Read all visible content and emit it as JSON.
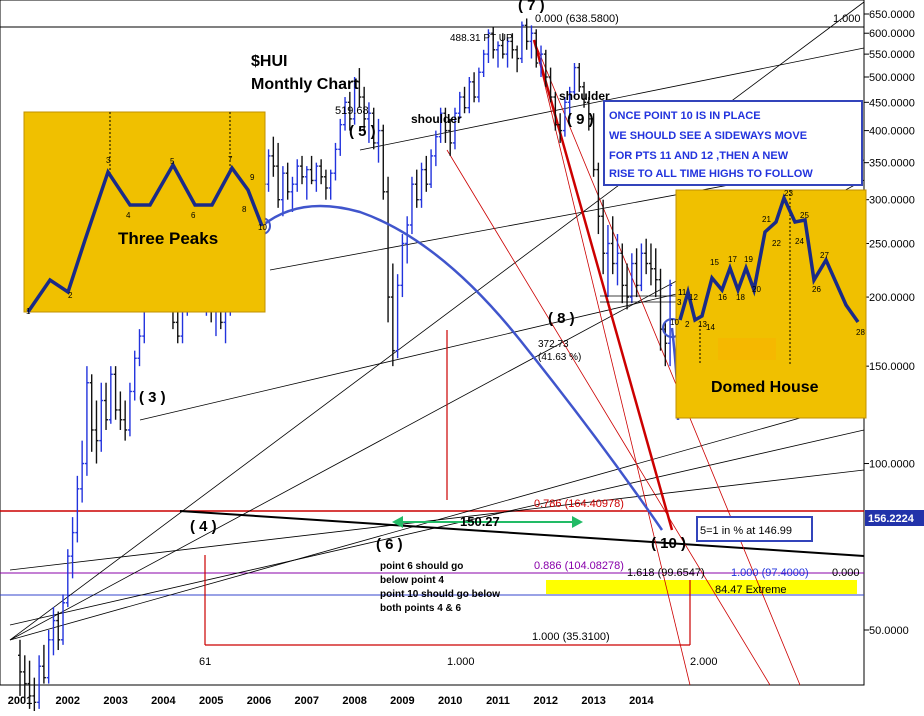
{
  "chart_data": {
    "type": "bar",
    "subtype": "ohlc-monthly",
    "title": "$HUI",
    "subtitle": "Monthly Chart",
    "symbol": "$HUI",
    "colors": {
      "bars_up": "#2233dd",
      "bars_down": "#111111",
      "fib_red": "#cc0000",
      "curve_blue": "#4055cc",
      "callout_bg": "#f0c000",
      "current_price_bg": "#2233aa",
      "fib_purple": "#8800aa",
      "arrow_green": "#22bb66",
      "extreme_band": "#ffff00"
    },
    "current_price": "156.2224",
    "y_axis": {
      "ticks": [
        "650.0000",
        "600.0000",
        "550.0000",
        "500.0000",
        "450.0000",
        "400.0000",
        "350.0000",
        "300.0000",
        "250.0000",
        "200.0000",
        "150.0000",
        "100.0000",
        "50.0000"
      ],
      "scale": "log"
    },
    "x_axis": {
      "ticks": [
        "2001",
        "2002",
        "2003",
        "2004",
        "2005",
        "2006",
        "2007",
        "2008",
        "2009",
        "2010",
        "2011",
        "2012",
        "2013",
        "2014"
      ]
    },
    "points": [
      {
        "label": "( 3 )",
        "date": "2003.6",
        "value": 260
      },
      {
        "label": "( 4 )",
        "date": "2004.6",
        "value": 160
      },
      {
        "label": "( 5 )",
        "date": "2008.2",
        "value": 519.68
      },
      {
        "label": "( 6 )",
        "date": "2008.8",
        "value": 150
      },
      {
        "label": "( 7 )",
        "date": "2011.7",
        "value": 638.58
      },
      {
        "label": "( 8 )",
        "date": "2012.5",
        "value": 380
      },
      {
        "label": "( 9 )",
        "date": "2012.8",
        "value": 530
      },
      {
        "label": "( 10 )",
        "date": "2014.3",
        "value": 150
      }
    ],
    "ohlc": [
      {
        "t": 2001.0,
        "o": 45,
        "h": 48,
        "l": 38,
        "c": 42
      },
      {
        "t": 2001.1,
        "o": 42,
        "h": 45,
        "l": 37,
        "c": 40
      },
      {
        "t": 2001.2,
        "o": 40,
        "h": 44,
        "l": 36,
        "c": 38
      },
      {
        "t": 2001.3,
        "o": 38,
        "h": 41,
        "l": 35,
        "c": 37
      },
      {
        "t": 2001.4,
        "o": 37,
        "h": 45,
        "l": 36,
        "c": 43
      },
      {
        "t": 2001.5,
        "o": 43,
        "h": 47,
        "l": 40,
        "c": 41
      },
      {
        "t": 2001.6,
        "o": 41,
        "h": 50,
        "l": 40,
        "c": 48
      },
      {
        "t": 2001.7,
        "o": 48,
        "h": 55,
        "l": 45,
        "c": 52
      },
      {
        "t": 2001.8,
        "o": 52,
        "h": 54,
        "l": 46,
        "c": 48
      },
      {
        "t": 2001.9,
        "o": 48,
        "h": 58,
        "l": 47,
        "c": 56
      },
      {
        "t": 2002.0,
        "o": 56,
        "h": 70,
        "l": 55,
        "c": 68
      },
      {
        "t": 2002.1,
        "o": 68,
        "h": 80,
        "l": 62,
        "c": 75
      },
      {
        "t": 2002.2,
        "o": 75,
        "h": 95,
        "l": 72,
        "c": 90
      },
      {
        "t": 2002.3,
        "o": 90,
        "h": 110,
        "l": 85,
        "c": 100
      },
      {
        "t": 2002.4,
        "o": 100,
        "h": 150,
        "l": 95,
        "c": 140
      },
      {
        "t": 2002.5,
        "o": 140,
        "h": 145,
        "l": 105,
        "c": 115
      },
      {
        "t": 2002.6,
        "o": 115,
        "h": 130,
        "l": 100,
        "c": 110
      },
      {
        "t": 2002.7,
        "o": 110,
        "h": 140,
        "l": 105,
        "c": 130
      },
      {
        "t": 2002.8,
        "o": 130,
        "h": 140,
        "l": 115,
        "c": 120
      },
      {
        "t": 2002.9,
        "o": 120,
        "h": 150,
        "l": 118,
        "c": 145
      },
      {
        "t": 2003.0,
        "o": 145,
        "h": 150,
        "l": 120,
        "c": 125
      },
      {
        "t": 2003.1,
        "o": 125,
        "h": 135,
        "l": 115,
        "c": 120
      },
      {
        "t": 2003.2,
        "o": 120,
        "h": 130,
        "l": 110,
        "c": 115
      },
      {
        "t": 2003.3,
        "o": 115,
        "h": 140,
        "l": 112,
        "c": 135
      },
      {
        "t": 2003.4,
        "o": 135,
        "h": 160,
        "l": 130,
        "c": 155
      },
      {
        "t": 2003.5,
        "o": 155,
        "h": 175,
        "l": 150,
        "c": 170
      },
      {
        "t": 2003.6,
        "o": 170,
        "h": 200,
        "l": 165,
        "c": 195
      },
      {
        "t": 2003.7,
        "o": 195,
        "h": 230,
        "l": 190,
        "c": 220
      },
      {
        "t": 2003.8,
        "o": 220,
        "h": 250,
        "l": 210,
        "c": 245
      },
      {
        "t": 2003.9,
        "o": 245,
        "h": 262,
        "l": 230,
        "c": 255
      },
      {
        "t": 2004.0,
        "o": 255,
        "h": 258,
        "l": 200,
        "c": 210
      },
      {
        "t": 2004.1,
        "o": 210,
        "h": 230,
        "l": 190,
        "c": 220
      },
      {
        "t": 2004.2,
        "o": 220,
        "h": 225,
        "l": 175,
        "c": 180
      },
      {
        "t": 2004.3,
        "o": 180,
        "h": 195,
        "l": 165,
        "c": 170
      },
      {
        "t": 2004.4,
        "o": 170,
        "h": 200,
        "l": 165,
        "c": 195
      },
      {
        "t": 2004.5,
        "o": 195,
        "h": 220,
        "l": 185,
        "c": 215
      },
      {
        "t": 2004.6,
        "o": 215,
        "h": 245,
        "l": 205,
        "c": 240
      },
      {
        "t": 2004.7,
        "o": 240,
        "h": 250,
        "l": 215,
        "c": 220
      },
      {
        "t": 2004.8,
        "o": 220,
        "h": 235,
        "l": 195,
        "c": 200
      },
      {
        "t": 2004.9,
        "o": 200,
        "h": 215,
        "l": 185,
        "c": 210
      },
      {
        "t": 2005.0,
        "o": 210,
        "h": 215,
        "l": 180,
        "c": 190
      },
      {
        "t": 2005.1,
        "o": 190,
        "h": 205,
        "l": 170,
        "c": 200
      },
      {
        "t": 2005.2,
        "o": 200,
        "h": 210,
        "l": 175,
        "c": 180
      },
      {
        "t": 2005.3,
        "o": 180,
        "h": 195,
        "l": 165,
        "c": 190
      },
      {
        "t": 2005.4,
        "o": 190,
        "h": 215,
        "l": 185,
        "c": 210
      },
      {
        "t": 2005.5,
        "o": 210,
        "h": 230,
        "l": 200,
        "c": 225
      },
      {
        "t": 2005.6,
        "o": 225,
        "h": 245,
        "l": 215,
        "c": 240
      },
      {
        "t": 2005.7,
        "o": 240,
        "h": 265,
        "l": 235,
        "c": 260
      },
      {
        "t": 2005.8,
        "o": 260,
        "h": 280,
        "l": 250,
        "c": 275
      },
      {
        "t": 2005.9,
        "o": 275,
        "h": 300,
        "l": 265,
        "c": 295
      },
      {
        "t": 2006.0,
        "o": 295,
        "h": 340,
        "l": 285,
        "c": 330
      },
      {
        "t": 2006.1,
        "o": 330,
        "h": 350,
        "l": 300,
        "c": 320
      },
      {
        "t": 2006.2,
        "o": 320,
        "h": 370,
        "l": 310,
        "c": 360
      },
      {
        "t": 2006.3,
        "o": 360,
        "h": 390,
        "l": 330,
        "c": 345
      },
      {
        "t": 2006.4,
        "o": 345,
        "h": 380,
        "l": 290,
        "c": 300
      },
      {
        "t": 2006.5,
        "o": 300,
        "h": 345,
        "l": 280,
        "c": 335
      },
      {
        "t": 2006.6,
        "o": 335,
        "h": 350,
        "l": 300,
        "c": 310
      },
      {
        "t": 2006.7,
        "o": 310,
        "h": 330,
        "l": 285,
        "c": 320
      },
      {
        "t": 2006.8,
        "o": 320,
        "h": 355,
        "l": 310,
        "c": 345
      },
      {
        "t": 2006.9,
        "o": 345,
        "h": 360,
        "l": 320,
        "c": 330
      },
      {
        "t": 2007.0,
        "o": 330,
        "h": 345,
        "l": 300,
        "c": 340
      },
      {
        "t": 2007.1,
        "o": 340,
        "h": 360,
        "l": 320,
        "c": 325
      },
      {
        "t": 2007.2,
        "o": 325,
        "h": 350,
        "l": 310,
        "c": 345
      },
      {
        "t": 2007.3,
        "o": 345,
        "h": 355,
        "l": 320,
        "c": 330
      },
      {
        "t": 2007.4,
        "o": 330,
        "h": 340,
        "l": 300,
        "c": 315
      },
      {
        "t": 2007.5,
        "o": 315,
        "h": 340,
        "l": 300,
        "c": 335
      },
      {
        "t": 2007.6,
        "o": 335,
        "h": 380,
        "l": 325,
        "c": 370
      },
      {
        "t": 2007.7,
        "o": 370,
        "h": 420,
        "l": 360,
        "c": 410
      },
      {
        "t": 2007.8,
        "o": 410,
        "h": 460,
        "l": 400,
        "c": 450
      },
      {
        "t": 2007.9,
        "o": 450,
        "h": 470,
        "l": 400,
        "c": 420
      },
      {
        "t": 2008.0,
        "o": 420,
        "h": 500,
        "l": 410,
        "c": 490
      },
      {
        "t": 2008.1,
        "o": 490,
        "h": 519,
        "l": 440,
        "c": 460
      },
      {
        "t": 2008.2,
        "o": 460,
        "h": 480,
        "l": 400,
        "c": 420
      },
      {
        "t": 2008.3,
        "o": 420,
        "h": 450,
        "l": 380,
        "c": 430
      },
      {
        "t": 2008.4,
        "o": 430,
        "h": 440,
        "l": 370,
        "c": 380
      },
      {
        "t": 2008.5,
        "o": 380,
        "h": 420,
        "l": 350,
        "c": 400
      },
      {
        "t": 2008.6,
        "o": 400,
        "h": 410,
        "l": 300,
        "c": 310
      },
      {
        "t": 2008.7,
        "o": 310,
        "h": 330,
        "l": 180,
        "c": 200
      },
      {
        "t": 2008.8,
        "o": 200,
        "h": 230,
        "l": 150,
        "c": 160
      },
      {
        "t": 2008.9,
        "o": 160,
        "h": 220,
        "l": 155,
        "c": 210
      },
      {
        "t": 2009.0,
        "o": 210,
        "h": 260,
        "l": 200,
        "c": 250
      },
      {
        "t": 2009.1,
        "o": 250,
        "h": 280,
        "l": 230,
        "c": 270
      },
      {
        "t": 2009.2,
        "o": 270,
        "h": 330,
        "l": 260,
        "c": 320
      },
      {
        "t": 2009.3,
        "o": 320,
        "h": 340,
        "l": 290,
        "c": 300
      },
      {
        "t": 2009.4,
        "o": 300,
        "h": 350,
        "l": 290,
        "c": 340
      },
      {
        "t": 2009.5,
        "o": 340,
        "h": 360,
        "l": 310,
        "c": 320
      },
      {
        "t": 2009.6,
        "o": 320,
        "h": 370,
        "l": 315,
        "c": 360
      },
      {
        "t": 2009.7,
        "o": 360,
        "h": 400,
        "l": 345,
        "c": 390
      },
      {
        "t": 2009.8,
        "o": 390,
        "h": 440,
        "l": 380,
        "c": 430
      },
      {
        "t": 2009.9,
        "o": 430,
        "h": 440,
        "l": 380,
        "c": 400
      },
      {
        "t": 2010.0,
        "o": 400,
        "h": 420,
        "l": 360,
        "c": 380
      },
      {
        "t": 2010.1,
        "o": 380,
        "h": 440,
        "l": 370,
        "c": 430
      },
      {
        "t": 2010.2,
        "o": 430,
        "h": 470,
        "l": 420,
        "c": 460
      },
      {
        "t": 2010.3,
        "o": 460,
        "h": 480,
        "l": 430,
        "c": 440
      },
      {
        "t": 2010.4,
        "o": 440,
        "h": 500,
        "l": 430,
        "c": 490
      },
      {
        "t": 2010.5,
        "o": 490,
        "h": 510,
        "l": 450,
        "c": 460
      },
      {
        "t": 2010.6,
        "o": 460,
        "h": 520,
        "l": 450,
        "c": 510
      },
      {
        "t": 2010.7,
        "o": 510,
        "h": 560,
        "l": 500,
        "c": 550
      },
      {
        "t": 2010.8,
        "o": 550,
        "h": 610,
        "l": 530,
        "c": 600
      },
      {
        "t": 2010.9,
        "o": 600,
        "h": 615,
        "l": 540,
        "c": 560
      },
      {
        "t": 2011.0,
        "o": 560,
        "h": 580,
        "l": 520,
        "c": 570
      },
      {
        "t": 2011.1,
        "o": 570,
        "h": 600,
        "l": 540,
        "c": 550
      },
      {
        "t": 2011.2,
        "o": 550,
        "h": 590,
        "l": 520,
        "c": 580
      },
      {
        "t": 2011.3,
        "o": 580,
        "h": 600,
        "l": 540,
        "c": 560
      },
      {
        "t": 2011.4,
        "o": 560,
        "h": 570,
        "l": 510,
        "c": 540
      },
      {
        "t": 2011.5,
        "o": 540,
        "h": 630,
        "l": 530,
        "c": 620
      },
      {
        "t": 2011.6,
        "o": 620,
        "h": 638,
        "l": 560,
        "c": 580
      },
      {
        "t": 2011.7,
        "o": 580,
        "h": 620,
        "l": 540,
        "c": 600
      },
      {
        "t": 2011.8,
        "o": 600,
        "h": 610,
        "l": 520,
        "c": 530
      },
      {
        "t": 2011.9,
        "o": 530,
        "h": 570,
        "l": 500,
        "c": 550
      },
      {
        "t": 2012.0,
        "o": 550,
        "h": 560,
        "l": 480,
        "c": 500
      },
      {
        "t": 2012.1,
        "o": 500,
        "h": 520,
        "l": 450,
        "c": 460
      },
      {
        "t": 2012.2,
        "o": 460,
        "h": 470,
        "l": 400,
        "c": 410
      },
      {
        "t": 2012.3,
        "o": 410,
        "h": 430,
        "l": 380,
        "c": 400
      },
      {
        "t": 2012.4,
        "o": 400,
        "h": 460,
        "l": 390,
        "c": 450
      },
      {
        "t": 2012.5,
        "o": 450,
        "h": 480,
        "l": 420,
        "c": 470
      },
      {
        "t": 2012.6,
        "o": 470,
        "h": 530,
        "l": 460,
        "c": 520
      },
      {
        "t": 2012.7,
        "o": 520,
        "h": 530,
        "l": 470,
        "c": 480
      },
      {
        "t": 2012.8,
        "o": 480,
        "h": 490,
        "l": 440,
        "c": 450
      },
      {
        "t": 2012.9,
        "o": 450,
        "h": 460,
        "l": 400,
        "c": 420
      },
      {
        "t": 2013.0,
        "o": 420,
        "h": 430,
        "l": 330,
        "c": 340
      },
      {
        "t": 2013.1,
        "o": 340,
        "h": 350,
        "l": 260,
        "c": 280
      },
      {
        "t": 2013.2,
        "o": 280,
        "h": 300,
        "l": 220,
        "c": 240
      },
      {
        "t": 2013.3,
        "o": 240,
        "h": 270,
        "l": 200,
        "c": 250
      },
      {
        "t": 2013.4,
        "o": 250,
        "h": 280,
        "l": 220,
        "c": 230
      },
      {
        "t": 2013.5,
        "o": 230,
        "h": 260,
        "l": 210,
        "c": 240
      },
      {
        "t": 2013.6,
        "o": 240,
        "h": 250,
        "l": 195,
        "c": 210
      },
      {
        "t": 2013.7,
        "o": 210,
        "h": 230,
        "l": 190,
        "c": 200
      },
      {
        "t": 2013.8,
        "o": 200,
        "h": 240,
        "l": 195,
        "c": 230
      },
      {
        "t": 2013.9,
        "o": 230,
        "h": 245,
        "l": 200,
        "c": 210
      },
      {
        "t": 2014.0,
        "o": 210,
        "h": 250,
        "l": 205,
        "c": 240
      },
      {
        "t": 2014.1,
        "o": 240,
        "h": 255,
        "l": 220,
        "c": 230
      },
      {
        "t": 2014.2,
        "o": 230,
        "h": 250,
        "l": 210,
        "c": 225
      },
      {
        "t": 2014.3,
        "o": 225,
        "h": 245,
        "l": 200,
        "c": 215
      },
      {
        "t": 2014.4,
        "o": 215,
        "h": 225,
        "l": 160,
        "c": 175
      },
      {
        "t": 2014.5,
        "o": 175,
        "h": 180,
        "l": 150,
        "c": 165
      },
      {
        "t": 2014.6,
        "o": 165,
        "h": 215,
        "l": 150,
        "c": 210
      }
    ],
    "annotations": {
      "peak_label": "519.68",
      "pt_up": "488.31 PT UP",
      "shoulder_left": "shoulder",
      "shoulder_right": "shoulder",
      "fib_top": "0.000 (638.5800)",
      "fib_top_right": "1.000",
      "p8_value": "372.73",
      "p8_pct": "(41.63 %)",
      "fib_786": "0.786 (164.40978)",
      "fib_886": "0.886 (104.08278)",
      "fib_1618": "1.618 (99.6547)",
      "fib_1000_97": "1.000 (97.4000)",
      "fib_zero": "0.000",
      "extreme": "84.47 Extreme",
      "fib_1000_35": "1.000 (35.3100)",
      "x_61": "61",
      "x_1000": "1.000",
      "x_2000": "2.000",
      "range_label": "150.27",
      "ratio_box": "5=1 in % at 146.99",
      "note_lines": [
        "point 6 should go",
        "below point 4",
        "point 10 should go below",
        "both points 4 & 6"
      ],
      "forecast_lines": [
        "ONCE POINT 10 IS IN PLACE",
        "WE SHOULD SEE A SIDEWAYS MOVE",
        "FOR PTS 11 AND 12 ,THEN A NEW",
        "RISE TO ALL TIME HIGHS TO FOLLOW"
      ]
    },
    "inset_left": {
      "title": "Three Peaks",
      "labels": [
        "1",
        "2",
        "3",
        "4",
        "5",
        "6",
        "7",
        "8",
        "9",
        "10"
      ]
    },
    "inset_right": {
      "title": "Domed House",
      "labels": [
        "1",
        "2",
        "3",
        "10",
        "11",
        "12",
        "13",
        "14",
        "15",
        "16",
        "17",
        "18",
        "19",
        "20",
        "21",
        "22",
        "23",
        "24",
        "25",
        "26",
        "27",
        "28"
      ]
    }
  }
}
